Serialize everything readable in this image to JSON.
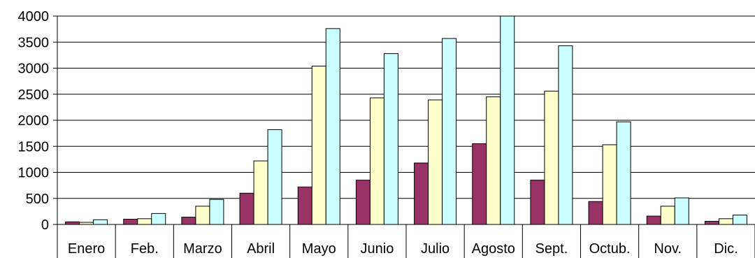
{
  "chart_data": {
    "type": "bar",
    "title": "",
    "xlabel": "",
    "ylabel": "",
    "ylim": [
      0,
      4000
    ],
    "yticks": [
      0,
      500,
      1000,
      1500,
      2000,
      2500,
      3000,
      3500,
      4000
    ],
    "grid": true,
    "legend": "none",
    "categories": [
      "Enero",
      "Feb.",
      "Marzo",
      "Abril",
      "Mayo",
      "Junio",
      "Julio",
      "Agosto",
      "Sept.",
      "Octub.",
      "Nov.",
      "Dic."
    ],
    "series": [
      {
        "color": "#993366",
        "values": [
          50,
          100,
          140,
          600,
          720,
          850,
          1180,
          1550,
          850,
          440,
          160,
          60
        ]
      },
      {
        "color": "#FFFFCC",
        "values": [
          40,
          110,
          350,
          1220,
          3040,
          2430,
          2390,
          2450,
          2560,
          1530,
          350,
          110
        ]
      },
      {
        "color": "#CCFFFF",
        "values": [
          90,
          210,
          480,
          1820,
          3760,
          3280,
          3570,
          4000,
          3430,
          1970,
          510,
          180
        ]
      }
    ]
  }
}
